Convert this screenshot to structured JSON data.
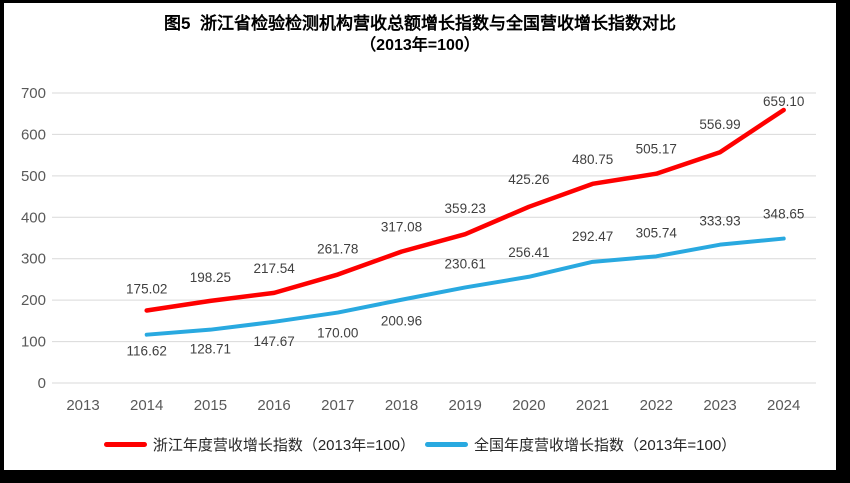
{
  "chart_data": {
    "type": "line",
    "title": "图5  浙江省检验检测机构营收总额增长指数与全国营收增长指数对比",
    "subtitle": "（2013年=100）",
    "categories": [
      "2013",
      "2014",
      "2015",
      "2016",
      "2017",
      "2018",
      "2019",
      "2020",
      "2021",
      "2022",
      "2023",
      "2024"
    ],
    "y_ticks": [
      0,
      100,
      200,
      300,
      400,
      500,
      600,
      700
    ],
    "ylim": [
      0,
      700
    ],
    "grid": true,
    "grid_color": "#D9D9D9",
    "legend_position": "bottom",
    "axis_label_color": "#595959",
    "data_label_color": "#404040",
    "series": [
      {
        "name": "浙江年度营收增长指数（2013年=100）",
        "color": "#FE0000",
        "stroke_width": 4.5,
        "start_index": 1,
        "values": [
          175.02,
          198.25,
          217.54,
          261.78,
          317.08,
          359.23,
          425.26,
          480.75,
          505.17,
          556.99,
          659.1
        ],
        "label_dy": [
          -22,
          -24,
          -25,
          -26,
          -25,
          -26,
          -28,
          -25,
          -25,
          -28,
          -9
        ]
      },
      {
        "name": "全国年度营收增长指数（2013年=100）",
        "color": "#29A9E0",
        "stroke_width": 4,
        "start_index": 1,
        "values": [
          116.62,
          128.71,
          147.67,
          170.0,
          200.96,
          230.61,
          256.41,
          292.47,
          305.74,
          333.93,
          348.65
        ],
        "label_dy": [
          16,
          19,
          19,
          20,
          21,
          -24,
          -25,
          -26,
          -24,
          -24,
          -25
        ]
      }
    ]
  }
}
